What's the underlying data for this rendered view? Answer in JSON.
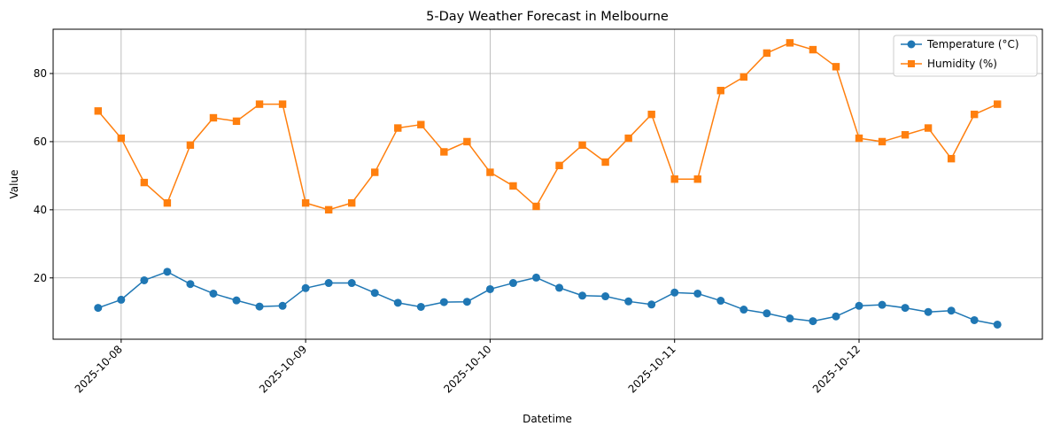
{
  "chart_data": {
    "type": "line",
    "title": "5-Day Weather Forecast in Melbourne",
    "xlabel": "Datetime",
    "ylabel": "Value",
    "x_ticks": [
      "2025-10-08",
      "2025-10-09",
      "2025-10-10",
      "2025-10-11",
      "2025-10-12"
    ],
    "y_ticks": [
      20,
      40,
      60,
      80
    ],
    "ylim": [
      2,
      93
    ],
    "grid": true,
    "legend_position": "top-right",
    "x": [
      "2025-10-07 21:00",
      "2025-10-08 00:00",
      "2025-10-08 03:00",
      "2025-10-08 06:00",
      "2025-10-08 09:00",
      "2025-10-08 12:00",
      "2025-10-08 15:00",
      "2025-10-08 18:00",
      "2025-10-08 21:00",
      "2025-10-09 00:00",
      "2025-10-09 03:00",
      "2025-10-09 06:00",
      "2025-10-09 09:00",
      "2025-10-09 12:00",
      "2025-10-09 15:00",
      "2025-10-09 18:00",
      "2025-10-09 21:00",
      "2025-10-10 00:00",
      "2025-10-10 03:00",
      "2025-10-10 06:00",
      "2025-10-10 09:00",
      "2025-10-10 12:00",
      "2025-10-10 15:00",
      "2025-10-10 18:00",
      "2025-10-10 21:00",
      "2025-10-11 00:00",
      "2025-10-11 03:00",
      "2025-10-11 06:00",
      "2025-10-11 09:00",
      "2025-10-11 12:00",
      "2025-10-11 15:00",
      "2025-10-11 18:00",
      "2025-10-11 21:00",
      "2025-10-12 00:00",
      "2025-10-12 03:00",
      "2025-10-12 06:00",
      "2025-10-12 09:00",
      "2025-10-12 12:00",
      "2025-10-12 15:00",
      "2025-10-12 18:00"
    ],
    "series": [
      {
        "name": "Temperature (°C)",
        "color": "#1f77b4",
        "marker": "circle",
        "values": [
          11.2,
          13.6,
          19.3,
          21.8,
          18.2,
          15.4,
          13.4,
          11.6,
          11.8,
          17.0,
          18.5,
          18.5,
          15.6,
          12.7,
          11.5,
          12.9,
          13.0,
          16.7,
          18.5,
          20.1,
          17.1,
          14.8,
          14.6,
          13.1,
          12.2,
          15.7,
          15.4,
          13.3,
          10.7,
          9.6,
          8.1,
          7.3,
          8.7,
          11.8,
          12.1,
          11.2,
          10.0,
          10.4,
          7.6,
          6.3
        ]
      },
      {
        "name": "Humidity (%)",
        "color": "#ff7f0e",
        "marker": "square",
        "values": [
          69,
          61,
          48,
          42,
          59,
          67,
          66,
          71,
          71,
          42,
          40,
          42,
          51,
          64,
          65,
          57,
          60,
          51,
          47,
          41,
          53,
          59,
          54,
          61,
          68,
          49,
          49,
          75,
          79,
          86,
          89,
          87,
          82,
          61,
          60,
          62,
          64,
          55,
          68,
          71
        ]
      }
    ]
  }
}
